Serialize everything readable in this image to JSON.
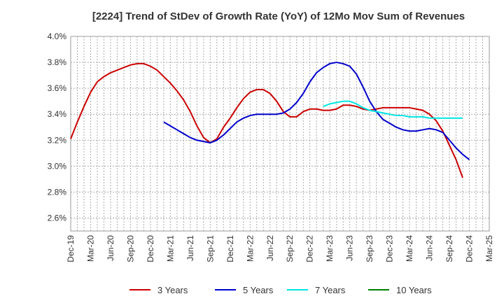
{
  "chart_data": {
    "type": "line",
    "title": "[2224]  Trend of StDev of Growth Rate (YoY) of 12Mo Mov Sum of Revenues",
    "xlabel": "",
    "ylabel": "",
    "ylim": [
      2.5,
      4.0
    ],
    "y_ticks": [
      2.6,
      2.8,
      3.0,
      3.2,
      3.4,
      3.6,
      3.8,
      4.0
    ],
    "y_tick_labels": [
      "2.6%",
      "2.8%",
      "3.0%",
      "3.2%",
      "3.4%",
      "3.6%",
      "3.8%",
      "4.0%"
    ],
    "x_tick_labels": [
      "Dec-19",
      "Mar-20",
      "Jun-20",
      "Sep-20",
      "Dec-20",
      "Mar-21",
      "Jun-21",
      "Sep-21",
      "Dec-21",
      "Mar-22",
      "Jun-22",
      "Sep-22",
      "Dec-22",
      "Mar-23",
      "Jun-23",
      "Sep-23",
      "Dec-23",
      "Mar-24",
      "Jun-24",
      "Sep-24",
      "Dec-24",
      "Mar-25"
    ],
    "grid": true,
    "legend_position": "bottom",
    "series": [
      {
        "name": "3 Years",
        "color": "#cc0000",
        "start_index": 0,
        "values": [
          3.21,
          3.34,
          3.46,
          3.57,
          3.65,
          3.69,
          3.72,
          3.74,
          3.76,
          3.78,
          3.79,
          3.79,
          3.77,
          3.74,
          3.69,
          3.64,
          3.58,
          3.51,
          3.42,
          3.31,
          3.22,
          3.18,
          3.21,
          3.3,
          3.37,
          3.45,
          3.52,
          3.57,
          3.59,
          3.59,
          3.56,
          3.5,
          3.42,
          3.38,
          3.38,
          3.42,
          3.44,
          3.44,
          3.43,
          3.43,
          3.44,
          3.47,
          3.47,
          3.46,
          3.44,
          3.43,
          3.44,
          3.45,
          3.45,
          3.45,
          3.45,
          3.45,
          3.44,
          3.43,
          3.4,
          3.35,
          3.27,
          3.16,
          3.05,
          2.91
        ]
      },
      {
        "name": "5 Years",
        "color": "#0000cc",
        "start_index": 14,
        "values": [
          3.34,
          3.31,
          3.28,
          3.25,
          3.22,
          3.2,
          3.19,
          3.18,
          3.2,
          3.24,
          3.29,
          3.34,
          3.37,
          3.39,
          3.4,
          3.4,
          3.4,
          3.4,
          3.41,
          3.44,
          3.49,
          3.56,
          3.65,
          3.72,
          3.76,
          3.79,
          3.8,
          3.79,
          3.77,
          3.71,
          3.61,
          3.5,
          3.42,
          3.36,
          3.33,
          3.3,
          3.28,
          3.27,
          3.27,
          3.28,
          3.29,
          3.28,
          3.26,
          3.2,
          3.14,
          3.09,
          3.05
        ]
      },
      {
        "name": "7 Years",
        "color": "#00e5e5",
        "start_index": 38,
        "values": [
          3.46,
          3.48,
          3.49,
          3.5,
          3.5,
          3.48,
          3.45,
          3.43,
          3.42,
          3.41,
          3.4,
          3.39,
          3.39,
          3.38,
          3.38,
          3.38,
          3.37,
          3.37,
          3.37,
          3.37,
          3.37,
          3.37
        ]
      },
      {
        "name": "10 Years",
        "color": "#008000",
        "start_index": 0,
        "values": []
      }
    ]
  }
}
